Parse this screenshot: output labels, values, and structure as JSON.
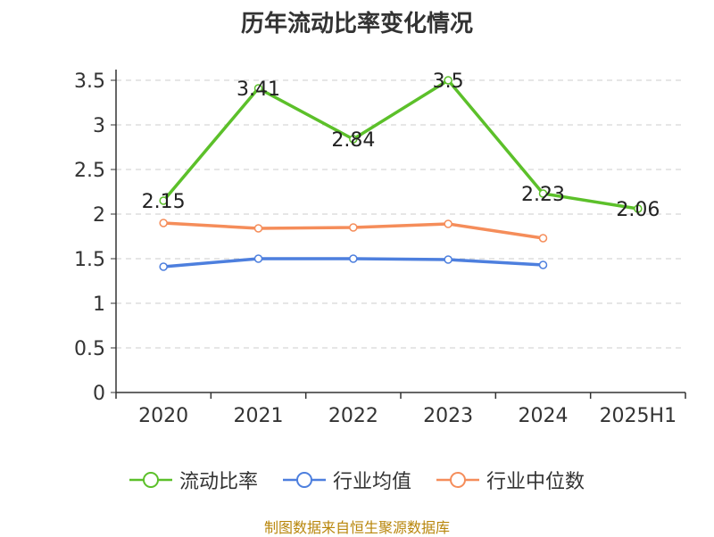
{
  "title": "历年流动比率变化情况",
  "source": "制图数据来自恒生聚源数据库",
  "chart_data": {
    "type": "line",
    "categories": [
      "2020",
      "2021",
      "2022",
      "2023",
      "2024",
      "2025H1"
    ],
    "y_ticks": [
      "0",
      "0.5",
      "1",
      "1.5",
      "2",
      "2.5",
      "3",
      "3.5"
    ],
    "ylim": [
      0,
      3.5
    ],
    "grid": "horizontal-dashed",
    "legend_position": "bottom",
    "series": [
      {
        "name": "流动比率",
        "color": "#5cc02a",
        "values": [
          2.15,
          3.41,
          2.84,
          3.5,
          2.23,
          2.06
        ],
        "labels": [
          "2.15",
          "3.41",
          "2.84",
          "3.5",
          "2.23",
          "2.06"
        ]
      },
      {
        "name": "行业均值",
        "color": "#4d7fde",
        "values": [
          1.41,
          1.5,
          1.5,
          1.49,
          1.43,
          null
        ]
      },
      {
        "name": "行业中位数",
        "color": "#f58d5a",
        "values": [
          1.9,
          1.84,
          1.85,
          1.89,
          1.73,
          null
        ]
      }
    ]
  }
}
